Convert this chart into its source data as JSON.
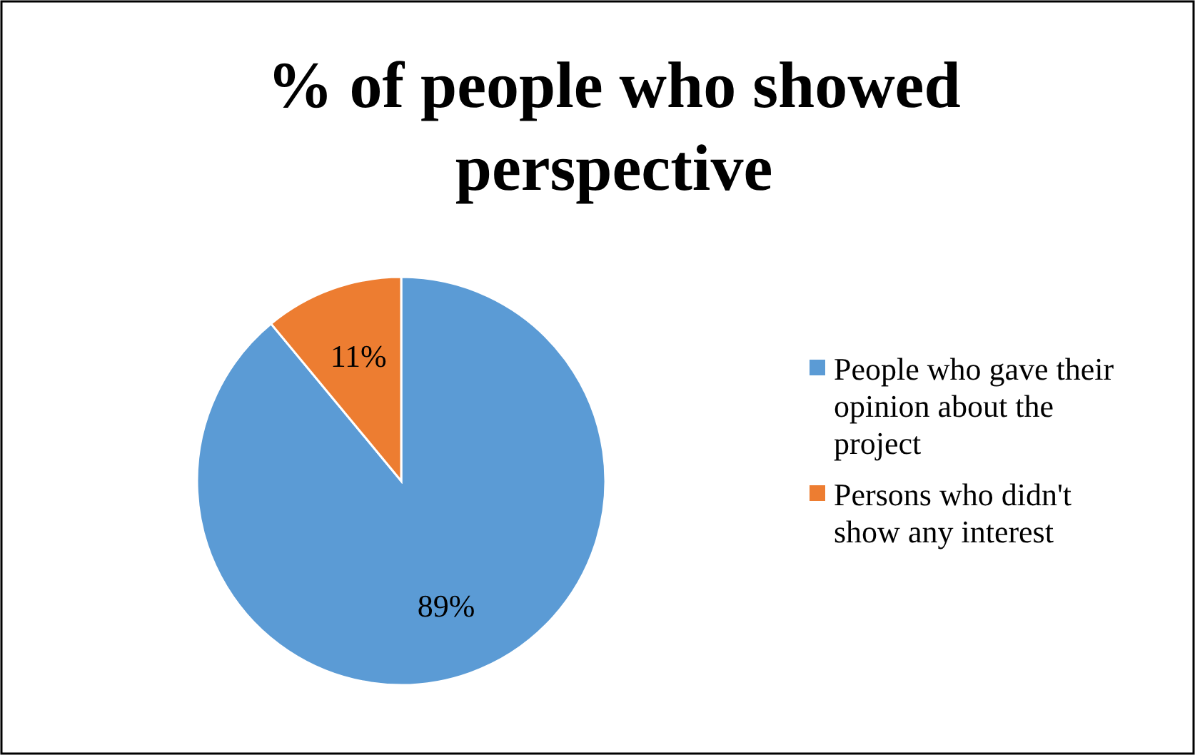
{
  "chart_data": {
    "type": "pie",
    "title": "% of people who showed perspective",
    "categories": [
      "People who gave their opinion about the project",
      "Persons who didn't show any interest"
    ],
    "values": [
      89,
      11
    ],
    "colors": [
      "#5b9bd5",
      "#ed7d31"
    ],
    "value_labels": [
      "89%",
      "11%"
    ],
    "legend": "right"
  }
}
